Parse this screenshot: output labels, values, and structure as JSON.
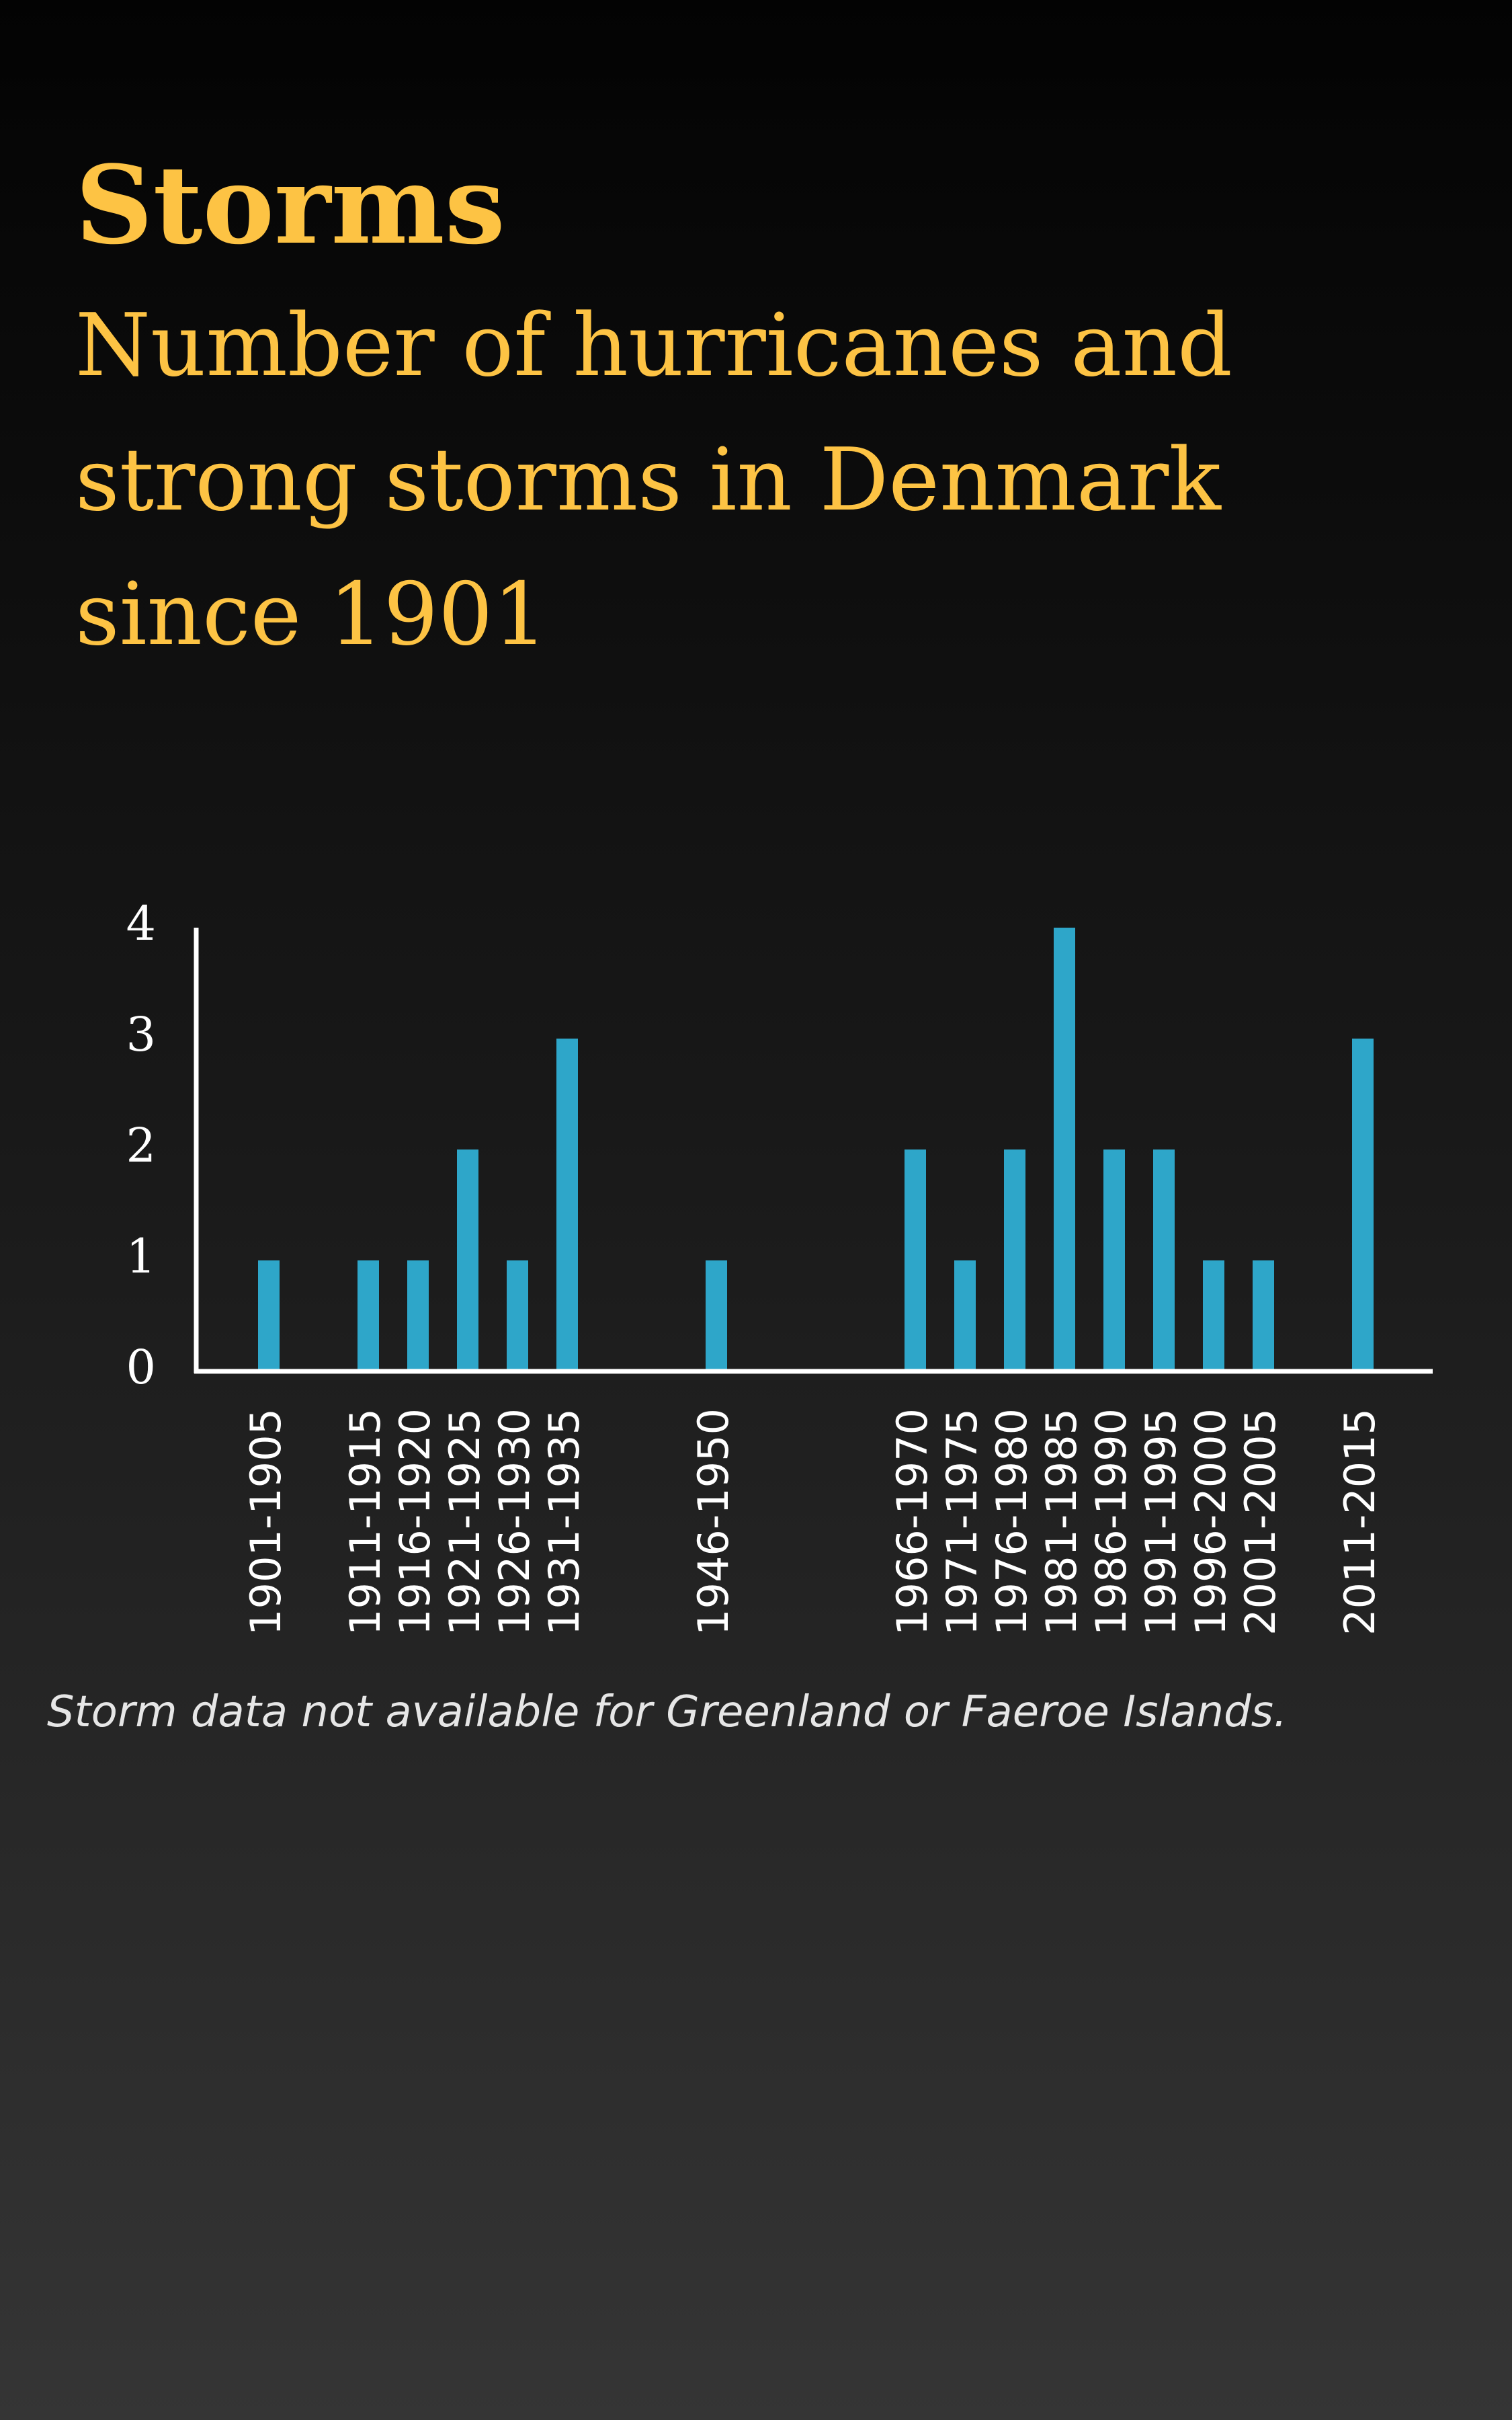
{
  "title": "Storms",
  "subtitle": "Number of hurricanes and strong storms in Denmark since 1901",
  "note": "Storm data not available for Greenland or Faeroe Islands.",
  "colors": {
    "title": "#fdc344",
    "bar": "#2ea6c9",
    "axis": "#ffffff",
    "text": "#ffffff"
  },
  "chart_data": {
    "type": "bar",
    "title": "",
    "xlabel": "",
    "ylabel": "",
    "ylim": [
      0,
      4
    ],
    "yticks": [
      0,
      1,
      2,
      3,
      4
    ],
    "grid": false,
    "categories": [
      "1901-1905",
      "1911-1915",
      "1916-1920",
      "1921-1925",
      "1926-1930",
      "1931-1935",
      "1946-1950",
      "1966-1970",
      "1971-1975",
      "1976-1980",
      "1981-1985",
      "1986-1990",
      "1991-1995",
      "1996-2000",
      "2001-2005",
      "2011-2015"
    ],
    "values": [
      1,
      1,
      1,
      2,
      1,
      3,
      1,
      2,
      1,
      2,
      4,
      2,
      2,
      1,
      1,
      3
    ]
  }
}
